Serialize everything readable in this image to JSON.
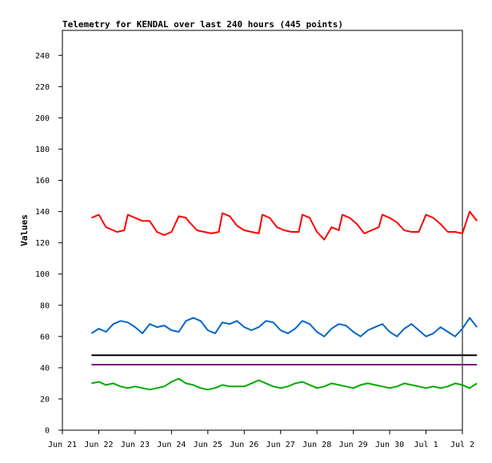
{
  "chart_data": {
    "type": "line",
    "title": "Telemetry for KENDAL over last 240 hours (445 points)",
    "xlabel": "",
    "ylabel": "Values",
    "ylim": [
      0,
      256
    ],
    "yticks": [
      0,
      20,
      40,
      60,
      80,
      100,
      120,
      140,
      160,
      180,
      200,
      220,
      240
    ],
    "xlim": [
      "2018-06-21",
      "2018-07-02"
    ],
    "xticks": [
      "Jun 21",
      "Jun 22",
      "Jun 23",
      "Jun 24",
      "Jun 25",
      "Jun 26",
      "Jun 27",
      "Jun 28",
      "Jun 29",
      "Jun 30",
      "Jul 1",
      "Jul 2"
    ],
    "grid": false,
    "legend": "none",
    "series": [
      {
        "color": "#ff0000",
        "points": [
          [
            0.8,
            136
          ],
          [
            1.0,
            138
          ],
          [
            1.2,
            130
          ],
          [
            1.4,
            128
          ],
          [
            1.5,
            127
          ],
          [
            1.7,
            128
          ],
          [
            1.8,
            138
          ],
          [
            2.0,
            136
          ],
          [
            2.2,
            134
          ],
          [
            2.4,
            134
          ],
          [
            2.6,
            127
          ],
          [
            2.8,
            125
          ],
          [
            3.0,
            127
          ],
          [
            3.2,
            137
          ],
          [
            3.4,
            136
          ],
          [
            3.5,
            133
          ],
          [
            3.7,
            128
          ],
          [
            3.9,
            127
          ],
          [
            4.1,
            126
          ],
          [
            4.3,
            127
          ],
          [
            4.4,
            139
          ],
          [
            4.6,
            137
          ],
          [
            4.8,
            131
          ],
          [
            5.0,
            128
          ],
          [
            5.2,
            127
          ],
          [
            5.4,
            126
          ],
          [
            5.5,
            138
          ],
          [
            5.7,
            136
          ],
          [
            5.9,
            130
          ],
          [
            6.1,
            128
          ],
          [
            6.3,
            127
          ],
          [
            6.5,
            127
          ],
          [
            6.6,
            138
          ],
          [
            6.8,
            136
          ],
          [
            7.0,
            127
          ],
          [
            7.2,
            122
          ],
          [
            7.4,
            130
          ],
          [
            7.6,
            128
          ],
          [
            7.7,
            138
          ],
          [
            7.9,
            136
          ],
          [
            8.1,
            132
          ],
          [
            8.3,
            126
          ],
          [
            8.5,
            128
          ],
          [
            8.7,
            130
          ],
          [
            8.8,
            138
          ],
          [
            9.0,
            136
          ],
          [
            9.2,
            133
          ],
          [
            9.4,
            128
          ],
          [
            9.6,
            127
          ],
          [
            9.8,
            127
          ],
          [
            10.0,
            138
          ],
          [
            10.2,
            136
          ],
          [
            10.4,
            132
          ],
          [
            10.6,
            127
          ],
          [
            10.8,
            127
          ],
          [
            11.0,
            126
          ],
          [
            11.2,
            140
          ],
          [
            11.4,
            134
          ]
        ]
      },
      {
        "color": "#0066cc",
        "points": [
          [
            0.8,
            62
          ],
          [
            1.0,
            65
          ],
          [
            1.2,
            63
          ],
          [
            1.4,
            68
          ],
          [
            1.6,
            70
          ],
          [
            1.8,
            69
          ],
          [
            2.0,
            66
          ],
          [
            2.2,
            62
          ],
          [
            2.4,
            68
          ],
          [
            2.6,
            66
          ],
          [
            2.8,
            67
          ],
          [
            3.0,
            64
          ],
          [
            3.2,
            63
          ],
          [
            3.4,
            70
          ],
          [
            3.6,
            72
          ],
          [
            3.8,
            70
          ],
          [
            4.0,
            64
          ],
          [
            4.2,
            62
          ],
          [
            4.4,
            69
          ],
          [
            4.6,
            68
          ],
          [
            4.8,
            70
          ],
          [
            5.0,
            66
          ],
          [
            5.2,
            64
          ],
          [
            5.4,
            66
          ],
          [
            5.6,
            70
          ],
          [
            5.8,
            69
          ],
          [
            6.0,
            64
          ],
          [
            6.2,
            62
          ],
          [
            6.4,
            65
          ],
          [
            6.6,
            70
          ],
          [
            6.8,
            68
          ],
          [
            7.0,
            63
          ],
          [
            7.2,
            60
          ],
          [
            7.4,
            65
          ],
          [
            7.6,
            68
          ],
          [
            7.8,
            67
          ],
          [
            8.0,
            63
          ],
          [
            8.2,
            60
          ],
          [
            8.4,
            64
          ],
          [
            8.6,
            66
          ],
          [
            8.8,
            68
          ],
          [
            9.0,
            63
          ],
          [
            9.2,
            60
          ],
          [
            9.4,
            65
          ],
          [
            9.6,
            68
          ],
          [
            9.8,
            64
          ],
          [
            10.0,
            60
          ],
          [
            10.2,
            62
          ],
          [
            10.4,
            66
          ],
          [
            10.6,
            63
          ],
          [
            10.8,
            60
          ],
          [
            11.0,
            65
          ],
          [
            11.2,
            72
          ],
          [
            11.4,
            66
          ]
        ]
      },
      {
        "color": "#000000",
        "points": [
          [
            0.8,
            48
          ],
          [
            11.4,
            48
          ]
        ]
      },
      {
        "color": "#800080",
        "points": [
          [
            0.8,
            42
          ],
          [
            11.4,
            42
          ]
        ]
      },
      {
        "color": "#00aa00",
        "points": [
          [
            0.8,
            30
          ],
          [
            1.0,
            31
          ],
          [
            1.2,
            29
          ],
          [
            1.4,
            30
          ],
          [
            1.6,
            28
          ],
          [
            1.8,
            27
          ],
          [
            2.0,
            28
          ],
          [
            2.2,
            27
          ],
          [
            2.4,
            26
          ],
          [
            2.6,
            27
          ],
          [
            2.8,
            28
          ],
          [
            3.0,
            31
          ],
          [
            3.2,
            33
          ],
          [
            3.4,
            30
          ],
          [
            3.6,
            29
          ],
          [
            3.8,
            27
          ],
          [
            4.0,
            26
          ],
          [
            4.2,
            27
          ],
          [
            4.4,
            29
          ],
          [
            4.6,
            28
          ],
          [
            4.8,
            28
          ],
          [
            5.0,
            28
          ],
          [
            5.2,
            30
          ],
          [
            5.4,
            32
          ],
          [
            5.6,
            30
          ],
          [
            5.8,
            28
          ],
          [
            6.0,
            27
          ],
          [
            6.2,
            28
          ],
          [
            6.4,
            30
          ],
          [
            6.6,
            31
          ],
          [
            6.8,
            29
          ],
          [
            7.0,
            27
          ],
          [
            7.2,
            28
          ],
          [
            7.4,
            30
          ],
          [
            7.6,
            29
          ],
          [
            7.8,
            28
          ],
          [
            8.0,
            27
          ],
          [
            8.2,
            29
          ],
          [
            8.4,
            30
          ],
          [
            8.6,
            29
          ],
          [
            8.8,
            28
          ],
          [
            9.0,
            27
          ],
          [
            9.2,
            28
          ],
          [
            9.4,
            30
          ],
          [
            9.6,
            29
          ],
          [
            9.8,
            28
          ],
          [
            10.0,
            27
          ],
          [
            10.2,
            28
          ],
          [
            10.4,
            27
          ],
          [
            10.6,
            28
          ],
          [
            10.8,
            30
          ],
          [
            11.0,
            29
          ],
          [
            11.2,
            27
          ],
          [
            11.4,
            30
          ]
        ]
      }
    ]
  }
}
